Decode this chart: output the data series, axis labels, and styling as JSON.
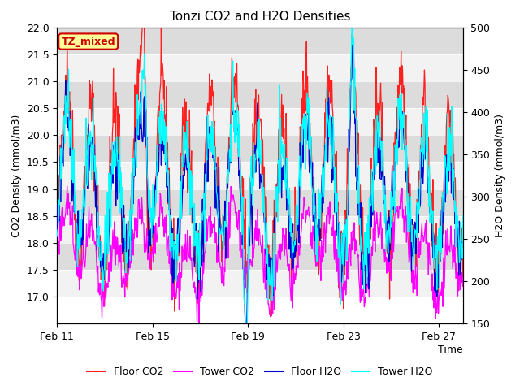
{
  "title": "Tonzi CO2 and H2O Densities",
  "xlabel": "Time",
  "ylabel_left": "CO2 Density (mmol/m3)",
  "ylabel_right": "H2O Density (mmol/m3)",
  "co2_ylim": [
    16.5,
    22.0
  ],
  "h2o_ylim": [
    150,
    500
  ],
  "co2_yticks": [
    17.0,
    17.5,
    18.0,
    18.5,
    19.0,
    19.5,
    20.0,
    20.5,
    21.0,
    21.5,
    22.0
  ],
  "h2o_yticks": [
    150,
    200,
    250,
    300,
    350,
    400,
    450,
    500
  ],
  "xtick_labels": [
    "Feb 11",
    "Feb 15",
    "Feb 19",
    "Feb 23",
    "Feb 27"
  ],
  "xtick_positions": [
    0,
    4,
    8,
    12,
    16
  ],
  "legend_labels": [
    "Floor CO2",
    "Tower CO2",
    "Floor H2O",
    "Tower H2O"
  ],
  "colors": {
    "floor_co2": "#FF2020",
    "tower_co2": "#FF00FF",
    "floor_h2o": "#0000CC",
    "tower_h2o": "#00FFFF"
  },
  "annotation_text": "TZ_mixed",
  "annotation_color": "#CC0000",
  "annotation_bg": "#FFFF99",
  "band_color_light": "#F2F2F2",
  "band_color_dark": "#DCDCDC",
  "title_fontsize": 11,
  "label_fontsize": 9,
  "tick_fontsize": 9,
  "legend_fontsize": 9,
  "n_days": 17,
  "seed": 42
}
